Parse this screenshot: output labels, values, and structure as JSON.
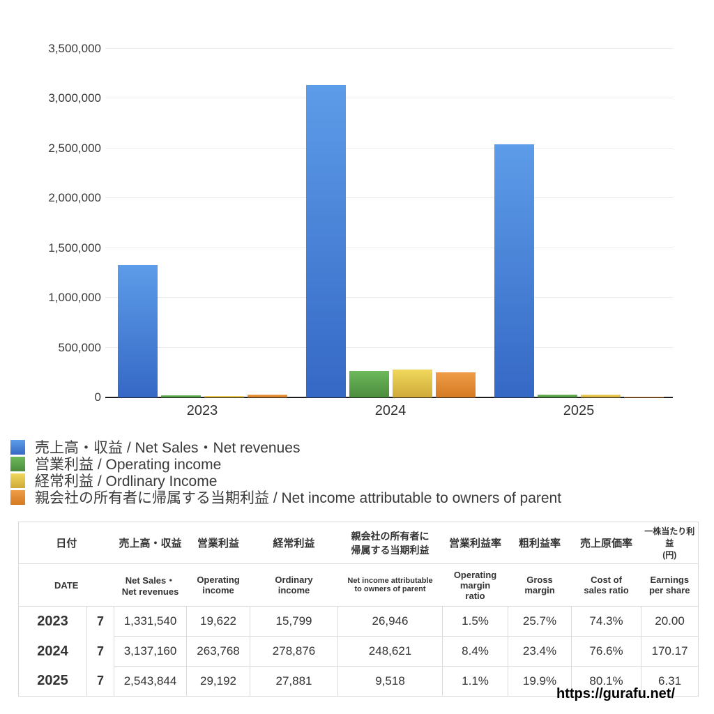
{
  "chart_data": {
    "type": "bar",
    "title": "",
    "xlabel": "",
    "ylabel": "",
    "grid": true,
    "legend_position": "below-left",
    "categories": [
      "2023",
      "2024",
      "2025"
    ],
    "series": [
      {
        "key": "net-sales",
        "name": "売上高・収益 / Net Sales・Net revenues",
        "values": [
          1331540,
          3137160,
          2543844
        ],
        "color_top": "#5d9ce8",
        "color_bottom": "#3568c5"
      },
      {
        "key": "operating-income",
        "name": "営業利益 / Operating income",
        "values": [
          19622,
          263768,
          29192
        ],
        "color_top": "#6db95b",
        "color_bottom": "#4c8c3e"
      },
      {
        "key": "ordinary-income",
        "name": "経常利益 / Ordlinary Income",
        "values": [
          15799,
          278876,
          27881
        ],
        "color_top": "#f0d85c",
        "color_bottom": "#cfaa39"
      },
      {
        "key": "net-income",
        "name": "親会社の所有者に帰属する当期利益 / Net income attributable to owners of parent",
        "values": [
          26946,
          248621,
          9518
        ],
        "color_top": "#ef9c48",
        "color_bottom": "#d47a22"
      }
    ],
    "ylim": [
      0,
      3500000
    ],
    "ytick_step": 500000,
    "ytick_labels": [
      "0",
      "500,000",
      "1,000,000",
      "1,500,000",
      "2,000,000",
      "2,500,000",
      "3,000,000",
      "3,500,000"
    ]
  },
  "table": {
    "columns_jp": [
      "日付",
      "売上高・収益",
      "営業利益",
      "経常利益",
      "親会社の所有者に\n帰属する当期利益",
      "営業利益率",
      "粗利益率",
      "売上原価率",
      "一株当たり利益\n(円)"
    ],
    "columns_en": [
      "DATE",
      "Net Sales・\nNet revenues",
      "Operating\nincome",
      "Ordinary\nincome",
      "Net income attributable\nto owners of parent",
      "Operating\nmargin\nratio",
      "Gross\nmargin",
      "Cost of\nsales ratio",
      "Earnings\nper share"
    ],
    "rows": [
      {
        "year": "2023",
        "month": "7",
        "values": [
          "1,331,540",
          "19,622",
          "15,799",
          "26,946",
          "1.5%",
          "25.7%",
          "74.3%",
          "20.00"
        ]
      },
      {
        "year": "2024",
        "month": "7",
        "values": [
          "3,137,160",
          "263,768",
          "278,876",
          "248,621",
          "8.4%",
          "23.4%",
          "76.6%",
          "170.17"
        ]
      },
      {
        "year": "2025",
        "month": "7",
        "values": [
          "2,543,844",
          "29,192",
          "27,881",
          "9,518",
          "1.1%",
          "19.9%",
          "80.1%",
          "6.31"
        ]
      }
    ]
  },
  "footer": {
    "url": "https://gurafu.net/"
  }
}
